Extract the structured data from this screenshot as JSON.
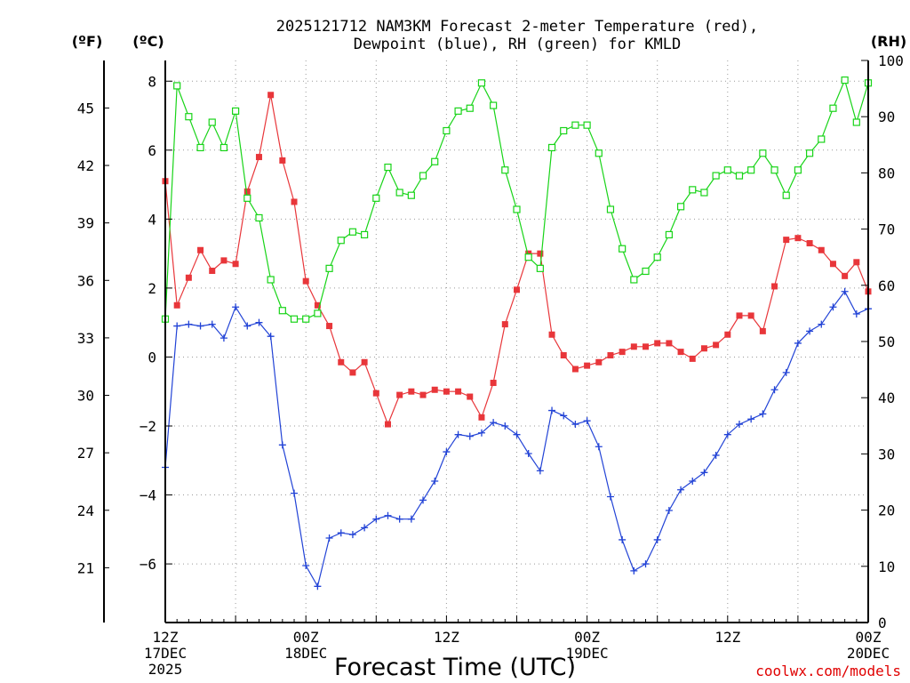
{
  "chart_data": {
    "type": "line",
    "title": [
      "2025121712 NAM3KM Forecast 2-meter Temperature (red),",
      "Dewpoint (blue), RH (green) for KMLD"
    ],
    "xlabel": "Forecast Time (UTC)",
    "credit": "coolwx.com/models",
    "axis_units": {
      "fahrenheit": "(ºF)",
      "celsius": "(ºC)",
      "rh": "(RH)"
    },
    "x_range_hours": [
      0,
      60
    ],
    "celsius_range": [
      -7.7,
      8.6
    ],
    "rh_range": [
      0,
      100
    ],
    "x_ticks": [
      {
        "h": 0,
        "lines": [
          "12Z",
          "17DEC",
          "2025"
        ]
      },
      {
        "h": 12,
        "lines": [
          "00Z",
          "18DEC"
        ]
      },
      {
        "h": 24,
        "lines": [
          "12Z"
        ]
      },
      {
        "h": 36,
        "lines": [
          "00Z",
          "19DEC"
        ]
      },
      {
        "h": 48,
        "lines": [
          "12Z"
        ]
      },
      {
        "h": 60,
        "lines": [
          "00Z",
          "20DEC"
        ]
      }
    ],
    "celsius_ticks": [
      {
        "v": 8,
        "label": "8"
      },
      {
        "v": 6,
        "label": "6"
      },
      {
        "v": 4,
        "label": "4"
      },
      {
        "v": 2,
        "label": "2"
      },
      {
        "v": 0,
        "label": "0"
      },
      {
        "v": -2,
        "label": "−2"
      },
      {
        "v": -4,
        "label": "−4"
      },
      {
        "v": -6,
        "label": "−6"
      }
    ],
    "fahrenheit_ticks": [
      45,
      42,
      39,
      36,
      33,
      30,
      27,
      24,
      21
    ],
    "rh_ticks": [
      100,
      90,
      80,
      70,
      60,
      50,
      40,
      30,
      20,
      10,
      0
    ],
    "series": [
      {
        "name": "2-meter Temperature",
        "unit": "C",
        "color": "#e8363a",
        "marker": "filled-square",
        "x": [
          0,
          1,
          2,
          3,
          4,
          5,
          6,
          7,
          8,
          9,
          10,
          11,
          12,
          13,
          14,
          15,
          16,
          17,
          18,
          19,
          20,
          21,
          22,
          23,
          24,
          25,
          26,
          27,
          28,
          29,
          30,
          31,
          32,
          33,
          34,
          35,
          36,
          37,
          38,
          39,
          40,
          41,
          42,
          43,
          44,
          45,
          46,
          47,
          48,
          49,
          50,
          51,
          52,
          53,
          54,
          55,
          56,
          57,
          58,
          59,
          60
        ],
        "values": [
          5.1,
          1.5,
          2.3,
          3.1,
          2.5,
          2.8,
          2.7,
          4.8,
          5.8,
          7.6,
          5.7,
          4.5,
          2.2,
          1.5,
          0.9,
          -0.15,
          -0.45,
          -0.15,
          -1.05,
          -1.95,
          -1.1,
          -1.0,
          -1.1,
          -0.95,
          -1.0,
          -1.0,
          -1.15,
          -1.75,
          -0.75,
          0.95,
          1.95,
          3.0,
          3.0,
          0.65,
          0.05,
          -0.35,
          -0.25,
          -0.15,
          0.05,
          0.15,
          0.3,
          0.3,
          0.4,
          0.4,
          0.15,
          -0.05,
          0.25,
          0.35,
          0.65,
          1.2,
          1.2,
          0.75,
          2.05,
          3.4,
          3.45,
          3.3,
          3.1,
          2.7,
          2.35,
          2.75,
          1.9
        ]
      },
      {
        "name": "Dewpoint",
        "unit": "C",
        "color": "#2243d6",
        "marker": "plus",
        "x": [
          0,
          1,
          2,
          3,
          4,
          5,
          6,
          7,
          8,
          9,
          10,
          11,
          12,
          13,
          14,
          15,
          16,
          17,
          18,
          19,
          20,
          21,
          22,
          23,
          24,
          25,
          26,
          27,
          28,
          29,
          30,
          31,
          32,
          33,
          34,
          35,
          36,
          37,
          38,
          39,
          40,
          41,
          42,
          43,
          44,
          45,
          46,
          47,
          48,
          49,
          50,
          51,
          52,
          53,
          54,
          55,
          56,
          57,
          58,
          59,
          60
        ],
        "values": [
          -3.2,
          0.9,
          0.95,
          0.9,
          0.95,
          0.55,
          1.45,
          0.9,
          1.0,
          0.6,
          -2.55,
          -3.95,
          -6.05,
          -6.65,
          -5.25,
          -5.1,
          -5.15,
          -4.95,
          -4.7,
          -4.6,
          -4.7,
          -4.7,
          -4.15,
          -3.6,
          -2.75,
          -2.25,
          -2.3,
          -2.2,
          -1.9,
          -2.0,
          -2.25,
          -2.8,
          -3.3,
          -1.55,
          -1.7,
          -1.95,
          -1.85,
          -2.6,
          -4.05,
          -5.3,
          -6.2,
          -6.0,
          -5.3,
          -4.45,
          -3.85,
          -3.6,
          -3.35,
          -2.85,
          -2.25,
          -1.95,
          -1.8,
          -1.65,
          -0.95,
          -0.45,
          0.4,
          0.75,
          0.95,
          1.45,
          1.9,
          1.25,
          1.4
        ]
      },
      {
        "name": "RH",
        "unit": "%",
        "color": "#18d418",
        "marker": "open-square",
        "x": [
          0,
          1,
          2,
          3,
          4,
          5,
          6,
          7,
          8,
          9,
          10,
          11,
          12,
          13,
          14,
          15,
          16,
          17,
          18,
          19,
          20,
          21,
          22,
          23,
          24,
          25,
          26,
          27,
          28,
          29,
          30,
          31,
          32,
          33,
          34,
          35,
          36,
          37,
          38,
          39,
          40,
          41,
          42,
          43,
          44,
          45,
          46,
          47,
          48,
          49,
          50,
          51,
          52,
          53,
          54,
          55,
          56,
          57,
          58,
          59,
          60
        ],
        "values": [
          54,
          95.5,
          90,
          84.5,
          89,
          84.5,
          91,
          75.5,
          72,
          61,
          55.5,
          54,
          54,
          55,
          63,
          68,
          69.5,
          69,
          75.5,
          81,
          76.5,
          76,
          79.5,
          82,
          87.5,
          91,
          91.5,
          96,
          92,
          80.5,
          73.5,
          65,
          63,
          84.5,
          87.5,
          88.5,
          88.5,
          83.5,
          73.5,
          66.5,
          61,
          62.5,
          65,
          69,
          74,
          77,
          76.5,
          79.5,
          80.5,
          79.5,
          80.5,
          83.5,
          80.5,
          76,
          80.5,
          83.5,
          86,
          91.5,
          96.5,
          89,
          96
        ]
      }
    ]
  }
}
